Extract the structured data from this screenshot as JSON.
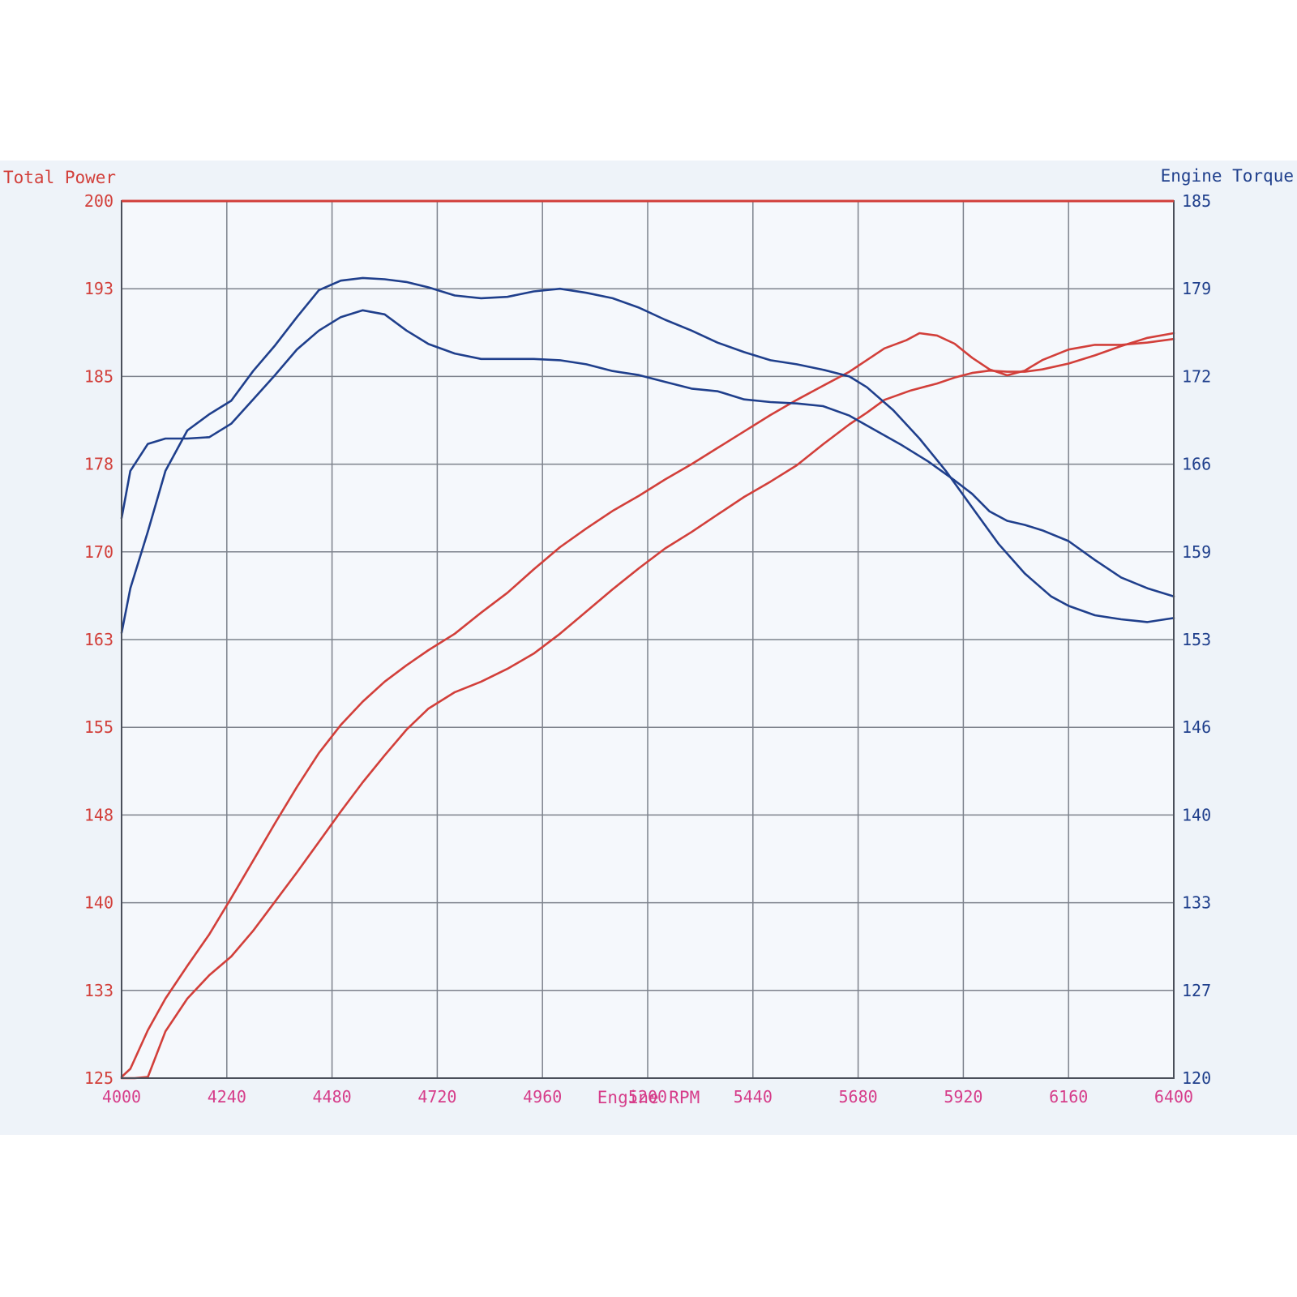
{
  "colors": {
    "power": "#d23f3a",
    "torque": "#1f3f8c",
    "rpm": "#d63d8a",
    "grid": "#7d828c",
    "sheet": "#eef3f9"
  },
  "chart_data": {
    "type": "line",
    "left_axis_title": "Total Power",
    "right_axis_title": "Engine Torque",
    "xlabel": "Engine RPM",
    "x_ticks": [
      "4000",
      "4240",
      "4480",
      "4720",
      "4960",
      "5200",
      "5440",
      "5680",
      "5920",
      "6160",
      "6400"
    ],
    "left_ticks": [
      "200",
      "193",
      "185",
      "178",
      "170",
      "163",
      "155",
      "148",
      "140",
      "133",
      "125"
    ],
    "right_ticks": [
      "185",
      "179",
      "172",
      "166",
      "159",
      "153",
      "146",
      "140",
      "133",
      "127",
      "120"
    ],
    "xlim": [
      4000,
      6400
    ],
    "left_ylim": [
      125,
      200
    ],
    "right_ylim": [
      120,
      185
    ],
    "grid": true,
    "series": [
      {
        "axis": "left",
        "color_key": "power",
        "x": [
          4000,
          4020,
          4060,
          4100,
          4150,
          4200,
          4250,
          4300,
          4350,
          4400,
          4450,
          4500,
          4550,
          4600,
          4650,
          4700,
          4760,
          4820,
          4880,
          4940,
          5000,
          5060,
          5120,
          5180,
          5240,
          5300,
          5360,
          5420,
          5480,
          5540,
          5600,
          5660,
          5700,
          5740,
          5790,
          5820,
          5860,
          5900,
          5940,
          5980,
          6020,
          6060,
          6100,
          6160,
          6220,
          6280,
          6340,
          6400
        ],
        "values": [
          125.1,
          125.8,
          129.1,
          131.8,
          134.6,
          137.3,
          140.4,
          143.6,
          146.8,
          149.9,
          152.8,
          155.2,
          157.2,
          158.9,
          160.3,
          161.6,
          163.0,
          164.8,
          166.5,
          168.5,
          170.4,
          172.0,
          173.5,
          174.8,
          176.2,
          177.5,
          178.9,
          180.3,
          181.7,
          183.0,
          184.2,
          185.4,
          186.4,
          187.4,
          188.1,
          188.7,
          188.5,
          187.8,
          186.6,
          185.6,
          185.1,
          185.5,
          186.4,
          187.3,
          187.7,
          187.7,
          187.9,
          188.2
        ]
      },
      {
        "axis": "left",
        "color_key": "power",
        "x": [
          4000,
          4030,
          4060,
          4100,
          4150,
          4200,
          4250,
          4300,
          4350,
          4400,
          4450,
          4500,
          4550,
          4600,
          4650,
          4700,
          4760,
          4820,
          4880,
          4940,
          5000,
          5060,
          5120,
          5180,
          5240,
          5300,
          5360,
          5420,
          5480,
          5540,
          5600,
          5660,
          5700,
          5740,
          5800,
          5860,
          5900,
          5940,
          5980,
          6020,
          6060,
          6100,
          6160,
          6220,
          6280,
          6340,
          6400
        ],
        "values": [
          125.0,
          125.0,
          125.1,
          129.0,
          131.8,
          133.8,
          135.4,
          137.6,
          140.1,
          142.6,
          145.2,
          147.8,
          150.3,
          152.6,
          154.8,
          156.6,
          158.0,
          158.9,
          160.0,
          161.3,
          163.0,
          164.9,
          166.8,
          168.6,
          170.3,
          171.7,
          173.2,
          174.7,
          176.0,
          177.4,
          179.2,
          180.9,
          181.9,
          183.0,
          183.8,
          184.4,
          184.9,
          185.3,
          185.5,
          185.4,
          185.4,
          185.6,
          186.1,
          186.8,
          187.6,
          188.3,
          188.7
        ]
      },
      {
        "axis": "right",
        "color_key": "torque",
        "x": [
          4000,
          4020,
          4060,
          4100,
          4150,
          4200,
          4250,
          4300,
          4350,
          4400,
          4450,
          4500,
          4550,
          4600,
          4650,
          4700,
          4760,
          4820,
          4880,
          4940,
          5000,
          5060,
          5120,
          5180,
          5240,
          5300,
          5360,
          5420,
          5480,
          5540,
          5600,
          5660,
          5720,
          5780,
          5840,
          5900,
          5940,
          5980,
          6020,
          6060,
          6100,
          6160,
          6220,
          6280,
          6340,
          6400
        ],
        "values": [
          161.5,
          165.0,
          167.0,
          167.4,
          167.4,
          167.5,
          168.5,
          170.3,
          172.1,
          174.0,
          175.4,
          176.4,
          176.9,
          176.6,
          175.4,
          174.4,
          173.7,
          173.3,
          173.3,
          173.3,
          173.2,
          172.9,
          172.4,
          172.1,
          171.6,
          171.1,
          170.9,
          170.3,
          170.1,
          170.0,
          169.8,
          169.1,
          168.0,
          166.9,
          165.7,
          164.3,
          163.3,
          162.0,
          161.3,
          161.0,
          160.6,
          159.8,
          158.4,
          157.1,
          156.3,
          155.7
        ]
      },
      {
        "axis": "right",
        "color_key": "torque",
        "x": [
          4000,
          4020,
          4060,
          4100,
          4150,
          4200,
          4250,
          4300,
          4350,
          4400,
          4450,
          4500,
          4550,
          4600,
          4650,
          4700,
          4760,
          4820,
          4880,
          4940,
          5000,
          5060,
          5120,
          5180,
          5240,
          5300,
          5360,
          5420,
          5480,
          5540,
          5600,
          5660,
          5700,
          5760,
          5820,
          5880,
          5940,
          6000,
          6060,
          6120,
          6160,
          6220,
          6280,
          6340,
          6400
        ],
        "values": [
          153.0,
          156.3,
          160.5,
          165.0,
          168.0,
          169.2,
          170.2,
          172.4,
          174.3,
          176.4,
          178.4,
          179.1,
          179.3,
          179.2,
          179.0,
          178.6,
          178.0,
          177.8,
          177.9,
          178.3,
          178.5,
          178.2,
          177.8,
          177.1,
          176.2,
          175.4,
          174.5,
          173.8,
          173.2,
          172.9,
          172.5,
          172.0,
          171.2,
          169.5,
          167.4,
          165.0,
          162.3,
          159.6,
          157.4,
          155.7,
          155.0,
          154.3,
          154.0,
          153.8,
          154.1
        ]
      }
    ]
  }
}
